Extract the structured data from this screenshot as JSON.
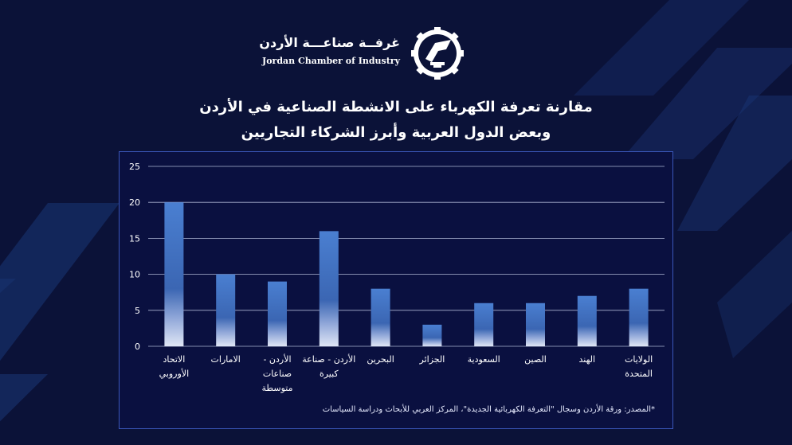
{
  "logo": {
    "arabic_name": "غرفــة صناعـــة الأردن",
    "english_name": "Jordan Chamber of Industry"
  },
  "title": {
    "line1": "مقارنة تعرفة الكهرباء على الانشطة الصناعية في الأردن",
    "line2": "وبعض الدول العربية وأبرز الشركاء التجاريين"
  },
  "chart_data": {
    "type": "bar",
    "categories": [
      [
        "الاتحاد",
        "الأوروبي"
      ],
      [
        "الامارات"
      ],
      [
        "الأردن -",
        "صناعات",
        "متوسطة"
      ],
      [
        "الأردن - صناعة",
        "كبيرة"
      ],
      [
        "البحرين"
      ],
      [
        "الجزائر"
      ],
      [
        "السعودية"
      ],
      [
        "الصين"
      ],
      [
        "الهند"
      ],
      [
        "الولايات",
        "المتحدة"
      ]
    ],
    "values": [
      20,
      10,
      9,
      16,
      8,
      3,
      6,
      6,
      7,
      8
    ],
    "yticks": [
      "0",
      "5",
      "10",
      "15",
      "20",
      "25"
    ],
    "ylim": [
      0,
      25
    ],
    "grid": true,
    "bar_color": "#3f6fc0",
    "source": "*المصدر: ورقة الأردن وسجال \"التعرفة الكهربائية الجديدة\"، المركز العربي للأبحاث ودراسة السياسات"
  },
  "colors": {
    "background": "#0b1238",
    "panel_border": "#3a56b8",
    "accent_stripes": "#1e3a7a"
  }
}
